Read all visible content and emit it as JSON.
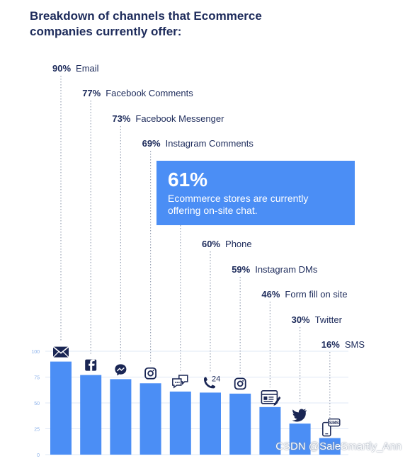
{
  "title": "Breakdown of channels that Ecommerce companies currently offer:",
  "callout": {
    "value": "61%",
    "text": "Ecommerce stores are currently offering on-site chat."
  },
  "watermark": "CSDN @SaleSmartly_Ann",
  "colors": {
    "bar": "#4b8ef5",
    "label_pct": "#1d2b5b",
    "grid": "#dfe8f6",
    "tick": "#8ab0ea"
  },
  "chart_data": {
    "type": "bar",
    "categories": [
      "Email",
      "Facebook Comments",
      "Facebook Messenger",
      "Instagram Comments",
      "On-site chat",
      "Phone",
      "Instagram DMs",
      "Form fill on site",
      "Twitter",
      "SMS"
    ],
    "values": [
      90,
      77,
      73,
      69,
      61,
      60,
      59,
      46,
      30,
      16
    ],
    "labels": [
      "90%",
      "77%",
      "73%",
      "69%",
      "",
      "60%",
      "59%",
      "46%",
      "30%",
      "16%"
    ],
    "names": [
      "Email",
      "Facebook Comments",
      "Facebook Messenger",
      "Instagram Comments",
      "",
      "Phone",
      "Instagram DMs",
      "Form fill on site",
      "Twitter",
      "SMS"
    ],
    "icons": [
      "email-icon",
      "facebook-icon",
      "messenger-icon",
      "instagram-icon",
      "chat-icon",
      "phone-24-icon",
      "instagram-icon",
      "form-icon",
      "twitter-icon",
      "sms-icon"
    ],
    "ylim": [
      0,
      100
    ],
    "yticks": [
      0,
      25,
      50,
      75,
      100
    ],
    "grid": true
  }
}
